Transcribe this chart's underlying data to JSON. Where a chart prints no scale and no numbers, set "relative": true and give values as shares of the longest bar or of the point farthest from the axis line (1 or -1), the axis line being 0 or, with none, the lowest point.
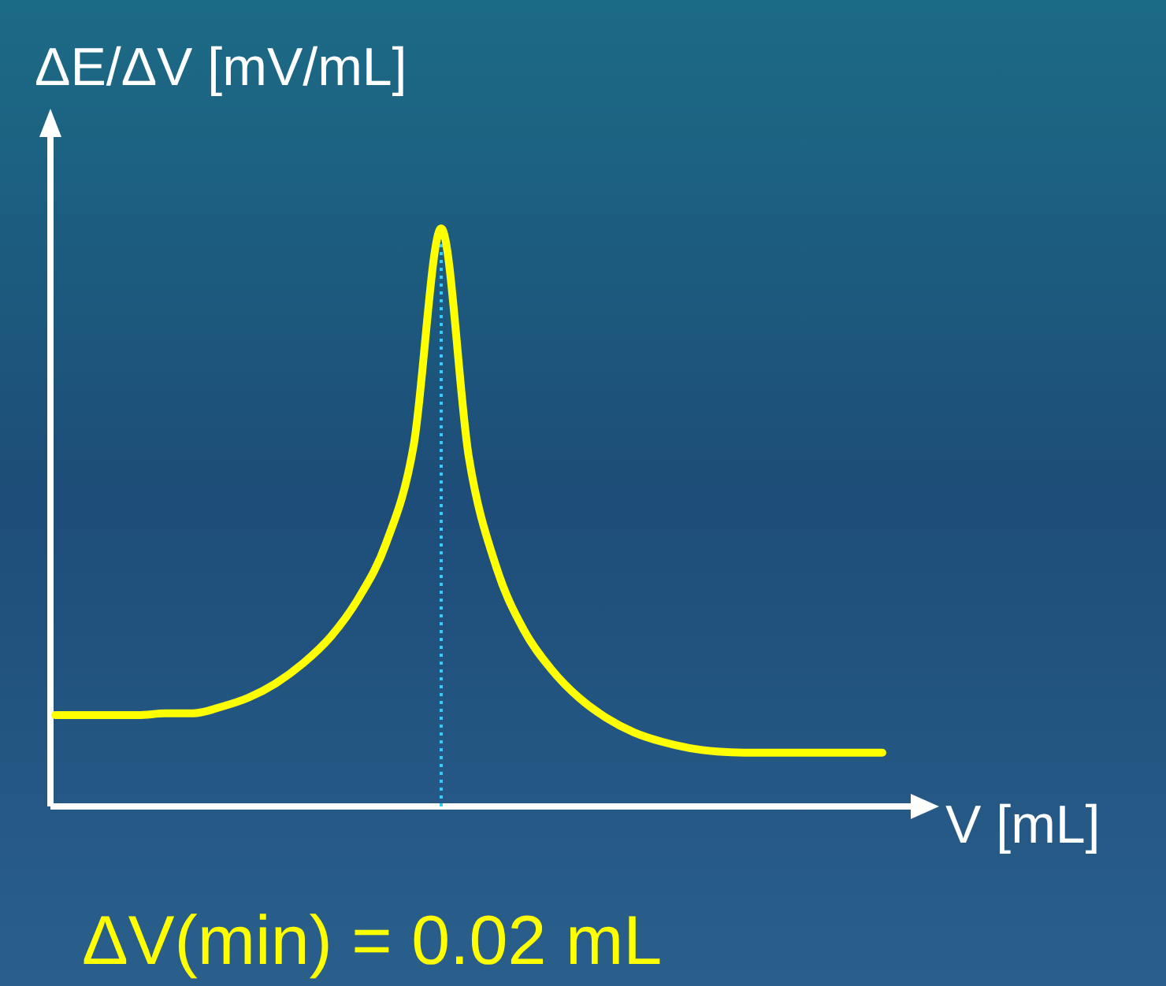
{
  "chart_data": {
    "type": "line",
    "relative": true,
    "xlabel": "V [mL]",
    "ylabel": "ΔE/ΔV  [mV/mL]",
    "categories": [
      null,
      null,
      null,
      null,
      null,
      null,
      null,
      null,
      null,
      null,
      null,
      null,
      null,
      null,
      null,
      null,
      null,
      null,
      null,
      null,
      null,
      null,
      null,
      null,
      null,
      null,
      null,
      null,
      null,
      null,
      null
    ],
    "series": [
      {
        "color": "#ffff00",
        "values": [
          0.158,
          0.158,
          0.158,
          0.158,
          0.161,
          0.161,
          0.172,
          0.188,
          0.213,
          0.248,
          0.294,
          0.36,
          0.455,
          0.624,
          1,
          0.605,
          0.414,
          0.305,
          0.237,
          0.188,
          0.153,
          0.128,
          0.112,
          0.101,
          0.095,
          0.093,
          0.093,
          0.093,
          0.093,
          0.093,
          0.093
        ]
      }
    ],
    "marker": "none",
    "annotations": [
      "ΔV(min) = 0.02 mL"
    ]
  }
}
